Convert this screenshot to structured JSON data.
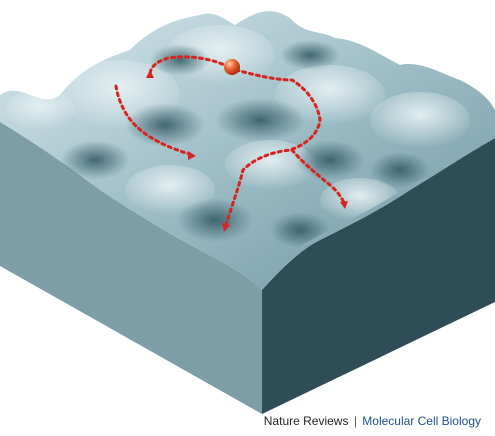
{
  "credit": {
    "publisher": "Nature Reviews",
    "separator": "|",
    "journal": "Molecular Cell Biology"
  },
  "palette": {
    "surface_light": "#c8dde3",
    "surface_mid": "#8fb0ba",
    "surface_dark": "#3f6470",
    "left_face": "#7d9ea6",
    "right_face": "#2f4d57",
    "path": "#d6241e",
    "ball": "#e05a2b"
  },
  "diagram": {
    "marble": "ball",
    "paths": [
      "path-left-branch",
      "path-down-valley",
      "path-center-branch",
      "path-right-branch"
    ]
  }
}
